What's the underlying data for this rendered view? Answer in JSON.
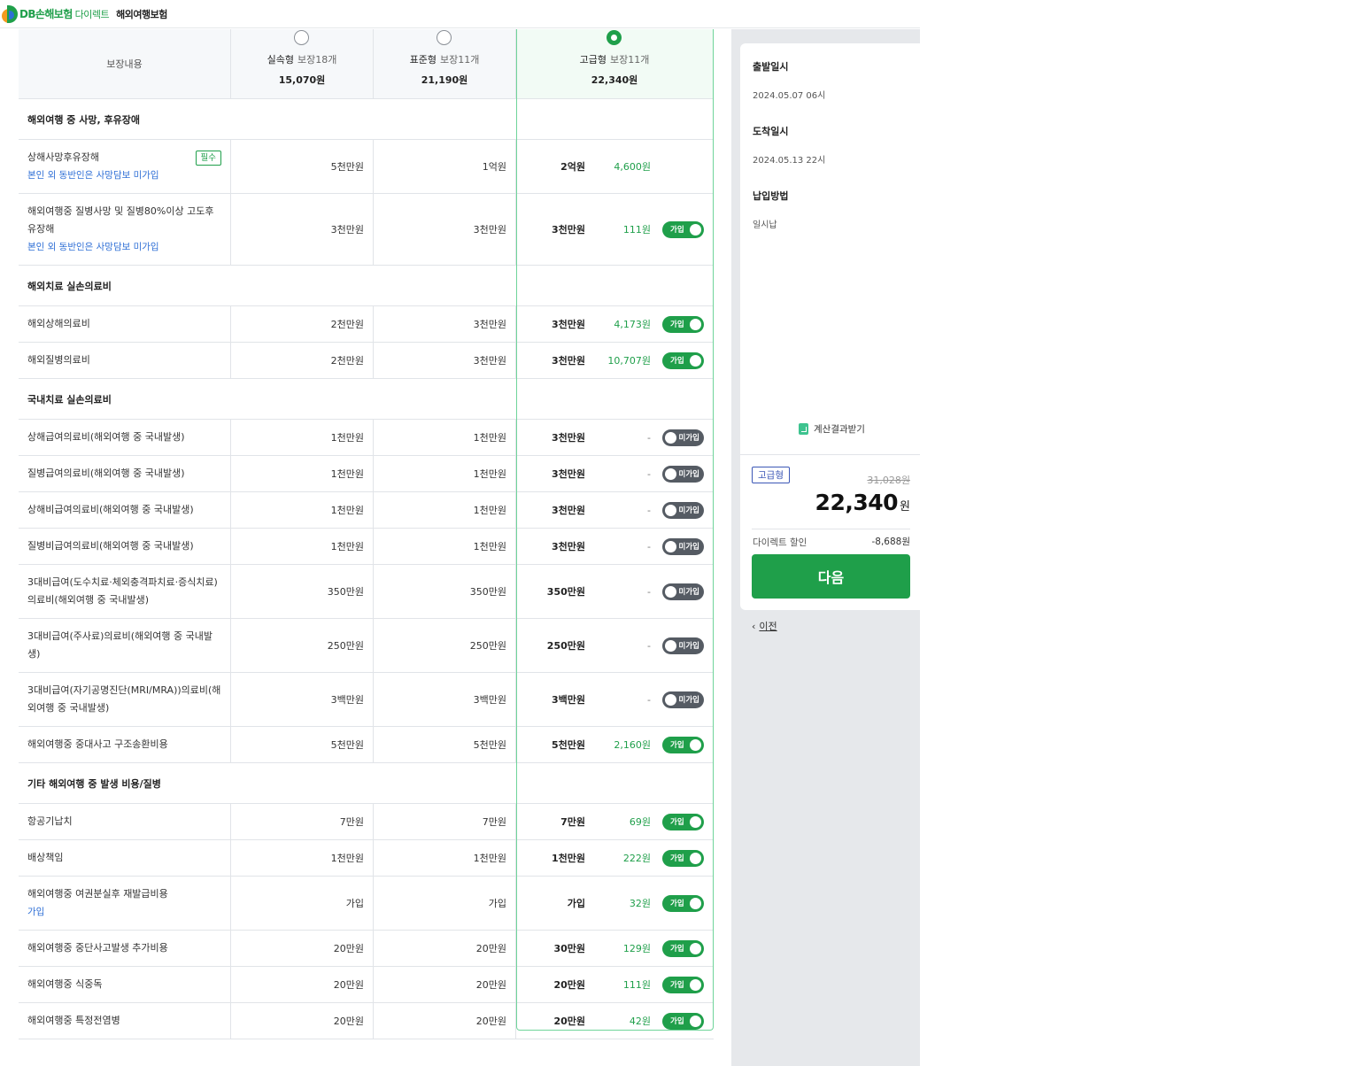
{
  "header": {
    "logo_text": "DB손해보험",
    "logo_sub": "다이렉트",
    "title": "해외여행보험"
  },
  "plans": {
    "label_header": "보장내용",
    "items": [
      {
        "name": "실속형",
        "count": "보장18개",
        "price": "15,070원",
        "selected": false
      },
      {
        "name": "표준형",
        "count": "보장11개",
        "price": "21,190원",
        "selected": false
      },
      {
        "name": "고급형",
        "count": "보장11개",
        "price": "22,340원",
        "selected": true
      }
    ]
  },
  "sections": [
    {
      "title": "해외여행 중 사망, 후유장애",
      "rows": [
        {
          "label": "상해사망후유장해",
          "sub": "본인 외 동반인은 사망담보 미가입",
          "badge": "필수",
          "v1": "5천만원",
          "v2": "1억원",
          "v3": "2억원",
          "premium": "4,600원",
          "toggle": null
        },
        {
          "label": "해외여행중 질병사망 및 질병80%이상 고도후유장해",
          "sub": "본인 외 동반인은 사망담보 미가입",
          "v1": "3천만원",
          "v2": "3천만원",
          "v3": "3천만원",
          "premium": "111원",
          "toggle": "가입"
        }
      ]
    },
    {
      "title": "해외치료 실손의료비",
      "rows": [
        {
          "label": "해외상해의료비",
          "v1": "2천만원",
          "v2": "3천만원",
          "v3": "3천만원",
          "premium": "4,173원",
          "toggle": "가입"
        },
        {
          "label": "해외질병의료비",
          "v1": "2천만원",
          "v2": "3천만원",
          "v3": "3천만원",
          "premium": "10,707원",
          "toggle": "가입"
        }
      ]
    },
    {
      "title": "국내치료 실손의료비",
      "rows": [
        {
          "label": "상해급여의료비(해외여행 중 국내발생)",
          "v1": "1천만원",
          "v2": "1천만원",
          "v3": "3천만원",
          "premium": "-",
          "toggle": "미가입"
        },
        {
          "label": "질병급여의료비(해외여행 중 국내발생)",
          "v1": "1천만원",
          "v2": "1천만원",
          "v3": "3천만원",
          "premium": "-",
          "toggle": "미가입"
        },
        {
          "label": "상해비급여의료비(해외여행 중 국내발생)",
          "v1": "1천만원",
          "v2": "1천만원",
          "v3": "3천만원",
          "premium": "-",
          "toggle": "미가입"
        },
        {
          "label": "질병비급여의료비(해외여행 중 국내발생)",
          "v1": "1천만원",
          "v2": "1천만원",
          "v3": "3천만원",
          "premium": "-",
          "toggle": "미가입"
        },
        {
          "label": "3대비급여(도수치료·체외충격파치료·증식치료)의료비(해외여행 중 국내발생)",
          "v1": "350만원",
          "v2": "350만원",
          "v3": "350만원",
          "premium": "-",
          "toggle": "미가입"
        },
        {
          "label": "3대비급여(주사료)의료비(해외여행 중 국내발생)",
          "v1": "250만원",
          "v2": "250만원",
          "v3": "250만원",
          "premium": "-",
          "toggle": "미가입"
        },
        {
          "label": "3대비급여(자기공명진단(MRI/MRA))의료비(해외여행 중 국내발생)",
          "v1": "3백만원",
          "v2": "3백만원",
          "v3": "3백만원",
          "premium": "-",
          "toggle": "미가입"
        },
        {
          "label": "해외여행중 중대사고 구조송환비용",
          "v1": "5천만원",
          "v2": "5천만원",
          "v3": "5천만원",
          "premium": "2,160원",
          "toggle": "가입"
        }
      ]
    },
    {
      "title": "기타 해외여행 중 발생 비용/질병",
      "rows": [
        {
          "label": "항공기납치",
          "v1": "7만원",
          "v2": "7만원",
          "v3": "7만원",
          "premium": "69원",
          "toggle": "가입"
        },
        {
          "label": "배상책임",
          "v1": "1천만원",
          "v2": "1천만원",
          "v3": "1천만원",
          "premium": "222원",
          "toggle": "가입"
        },
        {
          "label": "해외여행중 여권분실후 재발급비용",
          "sub": "가입",
          "v1": "가입",
          "v2": "가입",
          "v3": "가입",
          "premium": "32원",
          "toggle": "가입"
        },
        {
          "label": "해외여행중 중단사고발생 추가비용",
          "v1": "20만원",
          "v2": "20만원",
          "v3": "30만원",
          "premium": "129원",
          "toggle": "가입"
        },
        {
          "label": "해외여행중 식중독",
          "v1": "20만원",
          "v2": "20만원",
          "v3": "20만원",
          "premium": "111원",
          "toggle": "가입"
        },
        {
          "label": "해외여행중 특정전염병",
          "v1": "20만원",
          "v2": "20만원",
          "v3": "20만원",
          "premium": "42원",
          "toggle": "가입"
        }
      ]
    }
  ],
  "summary": {
    "departure_label": "출발일시",
    "departure_value": "2024.05.07 06시",
    "arrival_label": "도착일시",
    "arrival_value": "2024.05.13 22시",
    "payment_label": "납입방법",
    "payment_value": "일시납",
    "result_label": "계산결과받기",
    "plan_badge": "고급형",
    "original_price": "31,028원",
    "final_price": "22,340",
    "final_unit": "원",
    "discount_label": "다이렉트 할인",
    "discount_value": "-8,688원",
    "next_label": "다음",
    "prev_label": "이전"
  },
  "colors": {
    "accent": "#1f9f4a",
    "link": "#2f6fd6",
    "toggle_off": "#555b63",
    "badge": "#3c57b6"
  }
}
